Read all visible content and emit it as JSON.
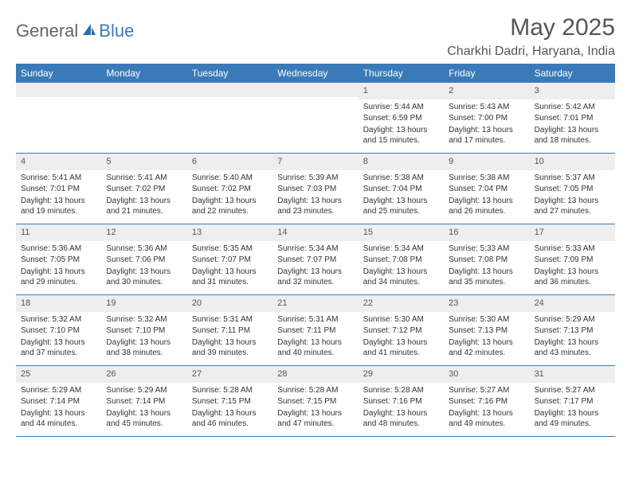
{
  "brand": {
    "text1": "General",
    "text2": "Blue"
  },
  "title": "May 2025",
  "location": "Charkhi Dadri, Haryana, India",
  "colors": {
    "header_bg": "#3a7ab8",
    "header_text": "#ffffff",
    "daynum_bg": "#eeeeee",
    "text": "#333333",
    "divider": "#3a7ab8",
    "background": "#ffffff"
  },
  "fonts": {
    "title_size_pt": 22,
    "location_size_pt": 12,
    "dow_size_pt": 9,
    "body_size_pt": 7.5
  },
  "days_of_week": [
    "Sunday",
    "Monday",
    "Tuesday",
    "Wednesday",
    "Thursday",
    "Friday",
    "Saturday"
  ],
  "weeks": [
    [
      {
        "n": "",
        "sunrise": "",
        "sunset": "",
        "daylight": ""
      },
      {
        "n": "",
        "sunrise": "",
        "sunset": "",
        "daylight": ""
      },
      {
        "n": "",
        "sunrise": "",
        "sunset": "",
        "daylight": ""
      },
      {
        "n": "",
        "sunrise": "",
        "sunset": "",
        "daylight": ""
      },
      {
        "n": "1",
        "sunrise": "Sunrise: 5:44 AM",
        "sunset": "Sunset: 6:59 PM",
        "daylight": "Daylight: 13 hours and 15 minutes."
      },
      {
        "n": "2",
        "sunrise": "Sunrise: 5:43 AM",
        "sunset": "Sunset: 7:00 PM",
        "daylight": "Daylight: 13 hours and 17 minutes."
      },
      {
        "n": "3",
        "sunrise": "Sunrise: 5:42 AM",
        "sunset": "Sunset: 7:01 PM",
        "daylight": "Daylight: 13 hours and 18 minutes."
      }
    ],
    [
      {
        "n": "4",
        "sunrise": "Sunrise: 5:41 AM",
        "sunset": "Sunset: 7:01 PM",
        "daylight": "Daylight: 13 hours and 19 minutes."
      },
      {
        "n": "5",
        "sunrise": "Sunrise: 5:41 AM",
        "sunset": "Sunset: 7:02 PM",
        "daylight": "Daylight: 13 hours and 21 minutes."
      },
      {
        "n": "6",
        "sunrise": "Sunrise: 5:40 AM",
        "sunset": "Sunset: 7:02 PM",
        "daylight": "Daylight: 13 hours and 22 minutes."
      },
      {
        "n": "7",
        "sunrise": "Sunrise: 5:39 AM",
        "sunset": "Sunset: 7:03 PM",
        "daylight": "Daylight: 13 hours and 23 minutes."
      },
      {
        "n": "8",
        "sunrise": "Sunrise: 5:38 AM",
        "sunset": "Sunset: 7:04 PM",
        "daylight": "Daylight: 13 hours and 25 minutes."
      },
      {
        "n": "9",
        "sunrise": "Sunrise: 5:38 AM",
        "sunset": "Sunset: 7:04 PM",
        "daylight": "Daylight: 13 hours and 26 minutes."
      },
      {
        "n": "10",
        "sunrise": "Sunrise: 5:37 AM",
        "sunset": "Sunset: 7:05 PM",
        "daylight": "Daylight: 13 hours and 27 minutes."
      }
    ],
    [
      {
        "n": "11",
        "sunrise": "Sunrise: 5:36 AM",
        "sunset": "Sunset: 7:05 PM",
        "daylight": "Daylight: 13 hours and 29 minutes."
      },
      {
        "n": "12",
        "sunrise": "Sunrise: 5:36 AM",
        "sunset": "Sunset: 7:06 PM",
        "daylight": "Daylight: 13 hours and 30 minutes."
      },
      {
        "n": "13",
        "sunrise": "Sunrise: 5:35 AM",
        "sunset": "Sunset: 7:07 PM",
        "daylight": "Daylight: 13 hours and 31 minutes."
      },
      {
        "n": "14",
        "sunrise": "Sunrise: 5:34 AM",
        "sunset": "Sunset: 7:07 PM",
        "daylight": "Daylight: 13 hours and 32 minutes."
      },
      {
        "n": "15",
        "sunrise": "Sunrise: 5:34 AM",
        "sunset": "Sunset: 7:08 PM",
        "daylight": "Daylight: 13 hours and 34 minutes."
      },
      {
        "n": "16",
        "sunrise": "Sunrise: 5:33 AM",
        "sunset": "Sunset: 7:08 PM",
        "daylight": "Daylight: 13 hours and 35 minutes."
      },
      {
        "n": "17",
        "sunrise": "Sunrise: 5:33 AM",
        "sunset": "Sunset: 7:09 PM",
        "daylight": "Daylight: 13 hours and 36 minutes."
      }
    ],
    [
      {
        "n": "18",
        "sunrise": "Sunrise: 5:32 AM",
        "sunset": "Sunset: 7:10 PM",
        "daylight": "Daylight: 13 hours and 37 minutes."
      },
      {
        "n": "19",
        "sunrise": "Sunrise: 5:32 AM",
        "sunset": "Sunset: 7:10 PM",
        "daylight": "Daylight: 13 hours and 38 minutes."
      },
      {
        "n": "20",
        "sunrise": "Sunrise: 5:31 AM",
        "sunset": "Sunset: 7:11 PM",
        "daylight": "Daylight: 13 hours and 39 minutes."
      },
      {
        "n": "21",
        "sunrise": "Sunrise: 5:31 AM",
        "sunset": "Sunset: 7:11 PM",
        "daylight": "Daylight: 13 hours and 40 minutes."
      },
      {
        "n": "22",
        "sunrise": "Sunrise: 5:30 AM",
        "sunset": "Sunset: 7:12 PM",
        "daylight": "Daylight: 13 hours and 41 minutes."
      },
      {
        "n": "23",
        "sunrise": "Sunrise: 5:30 AM",
        "sunset": "Sunset: 7:13 PM",
        "daylight": "Daylight: 13 hours and 42 minutes."
      },
      {
        "n": "24",
        "sunrise": "Sunrise: 5:29 AM",
        "sunset": "Sunset: 7:13 PM",
        "daylight": "Daylight: 13 hours and 43 minutes."
      }
    ],
    [
      {
        "n": "25",
        "sunrise": "Sunrise: 5:29 AM",
        "sunset": "Sunset: 7:14 PM",
        "daylight": "Daylight: 13 hours and 44 minutes."
      },
      {
        "n": "26",
        "sunrise": "Sunrise: 5:29 AM",
        "sunset": "Sunset: 7:14 PM",
        "daylight": "Daylight: 13 hours and 45 minutes."
      },
      {
        "n": "27",
        "sunrise": "Sunrise: 5:28 AM",
        "sunset": "Sunset: 7:15 PM",
        "daylight": "Daylight: 13 hours and 46 minutes."
      },
      {
        "n": "28",
        "sunrise": "Sunrise: 5:28 AM",
        "sunset": "Sunset: 7:15 PM",
        "daylight": "Daylight: 13 hours and 47 minutes."
      },
      {
        "n": "29",
        "sunrise": "Sunrise: 5:28 AM",
        "sunset": "Sunset: 7:16 PM",
        "daylight": "Daylight: 13 hours and 48 minutes."
      },
      {
        "n": "30",
        "sunrise": "Sunrise: 5:27 AM",
        "sunset": "Sunset: 7:16 PM",
        "daylight": "Daylight: 13 hours and 49 minutes."
      },
      {
        "n": "31",
        "sunrise": "Sunrise: 5:27 AM",
        "sunset": "Sunset: 7:17 PM",
        "daylight": "Daylight: 13 hours and 49 minutes."
      }
    ]
  ]
}
